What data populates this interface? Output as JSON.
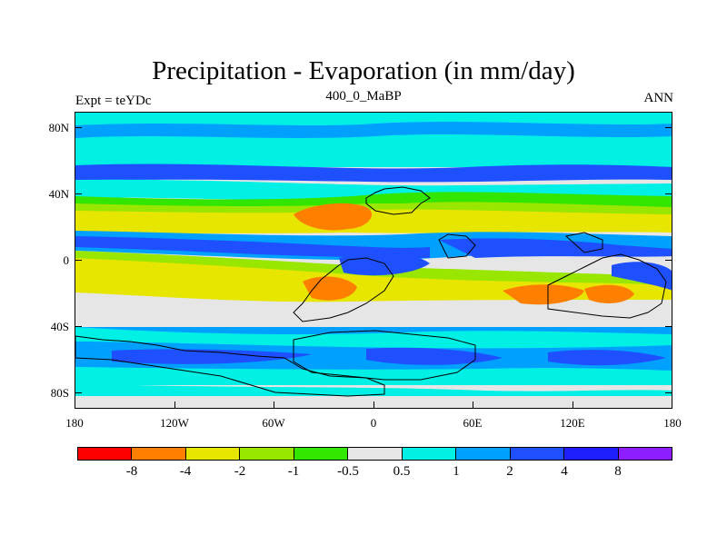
{
  "header": {
    "title": "Precipitation - Evaporation (in mm/day)",
    "subtitle_center": "400_0_MaBP",
    "subtitle_left": "Expt = teYDc",
    "subtitle_right": "ANN"
  },
  "axes": {
    "y_ticks": [
      "80N",
      "40N",
      "0",
      "40S",
      "80S"
    ],
    "x_ticks": [
      "180",
      "120W",
      "60W",
      "0",
      "60E",
      "120E",
      "180"
    ]
  },
  "colorbar": {
    "labels": [
      "-8",
      "-4",
      "-2",
      "-1",
      "-0.5",
      "0.5",
      "1",
      "2",
      "4",
      "8"
    ],
    "colors": [
      "#ff0000",
      "#ff7f00",
      "#e6e600",
      "#99e600",
      "#33e600",
      "#e6e6e6",
      "#00f0e6",
      "#00a0ff",
      "#1e50ff",
      "#1e1eff",
      "#8c1eff"
    ]
  }
}
